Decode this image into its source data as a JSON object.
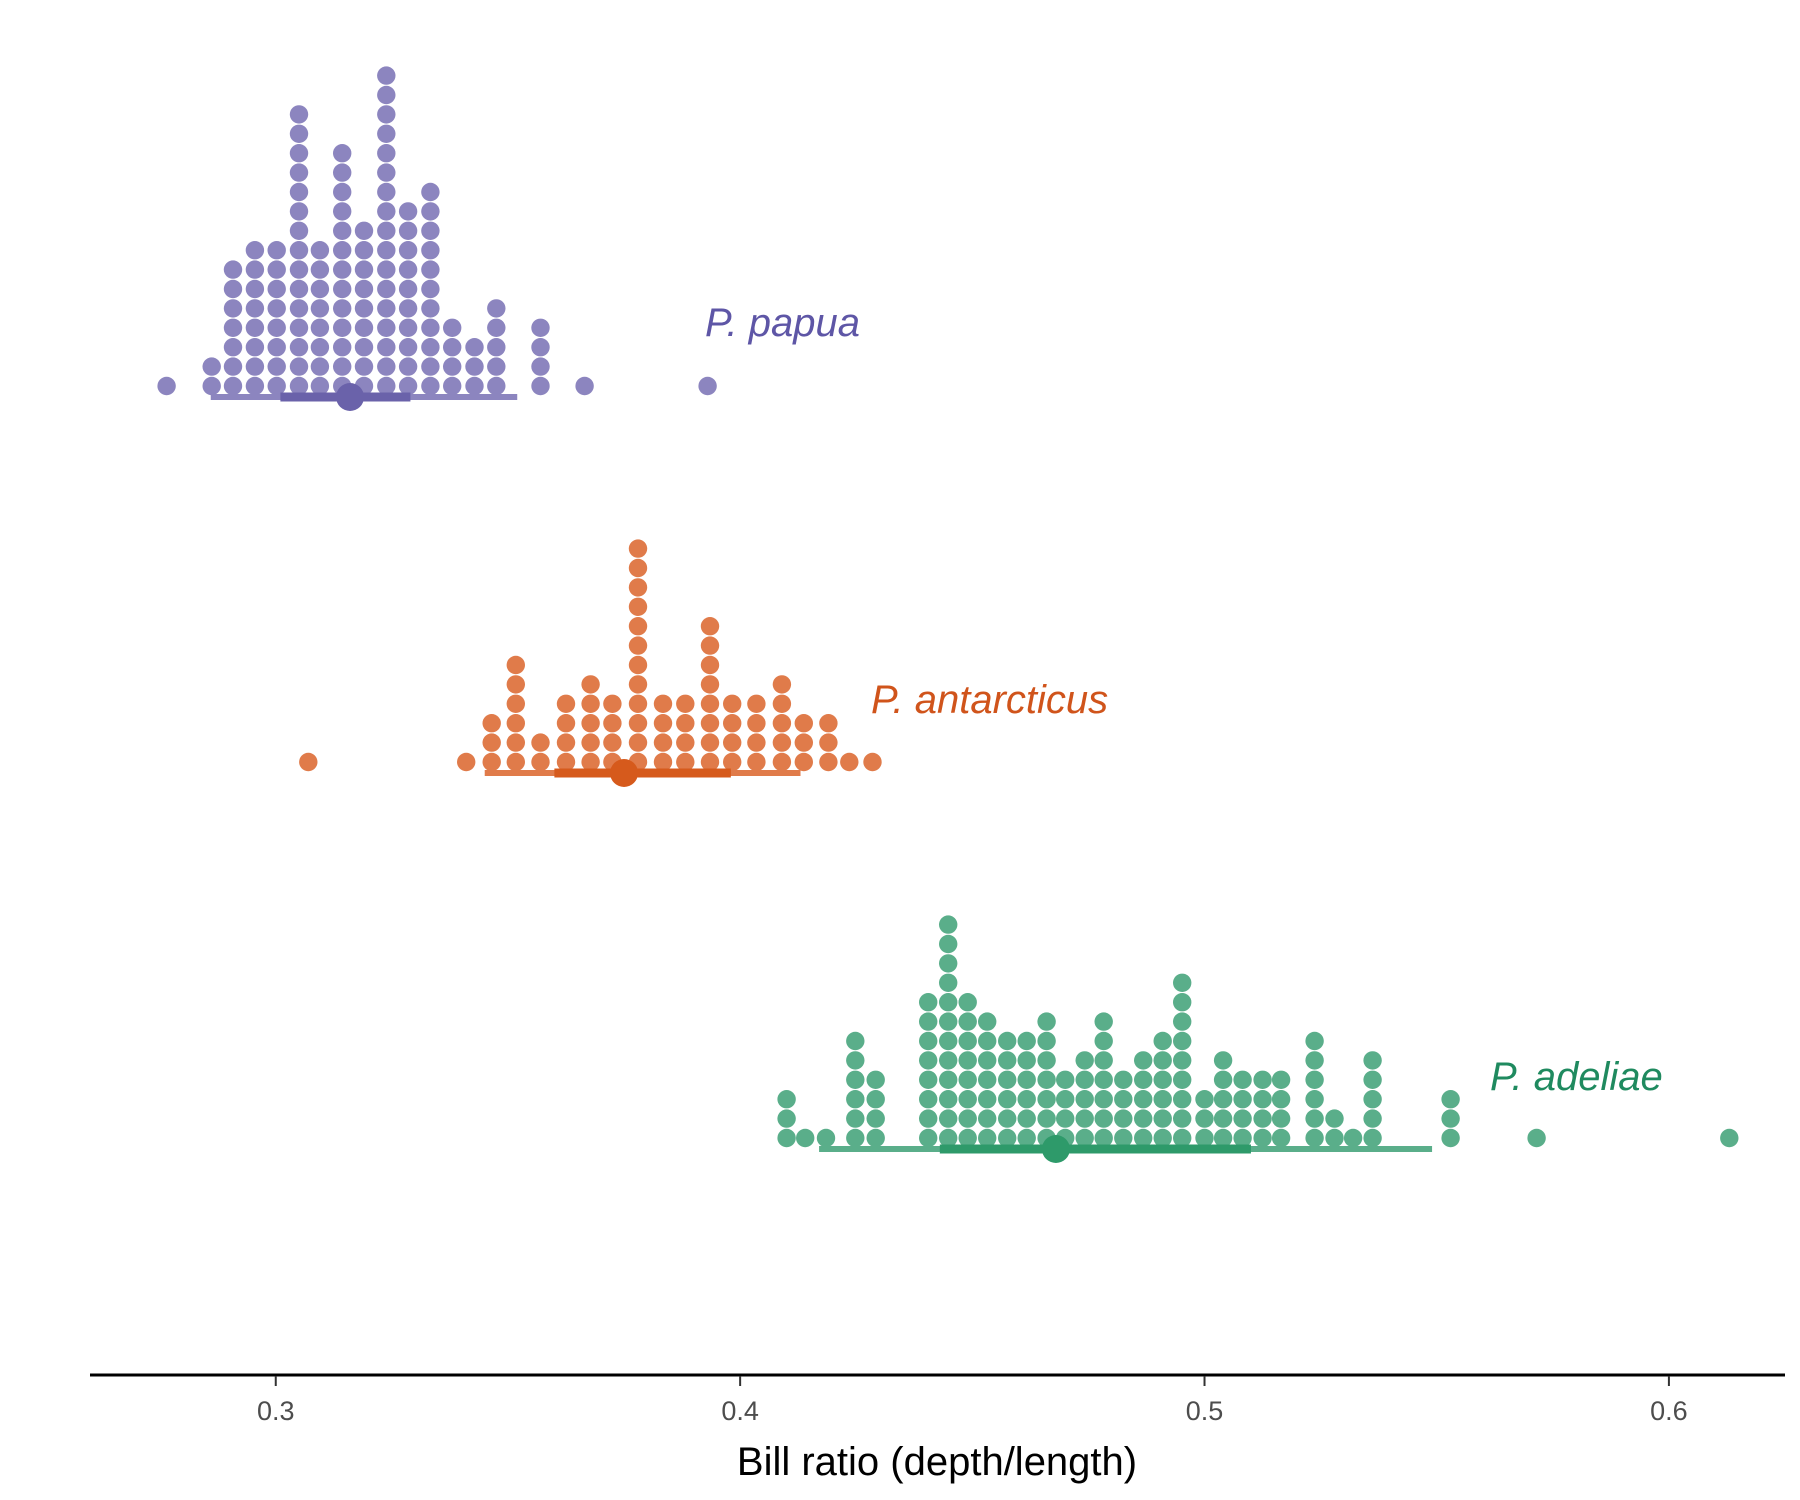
{
  "chart_data": {
    "type": "dotplot",
    "title": "",
    "xlabel": "Bill ratio (depth/length)",
    "ylabel": "",
    "xlim": [
      0.26,
      0.625
    ],
    "x_ticks": [
      {
        "value": 0.3,
        "label": "0.3"
      },
      {
        "value": 0.4,
        "label": "0.4"
      },
      {
        "value": 0.5,
        "label": "0.5"
      },
      {
        "value": 0.6,
        "label": "0.6"
      }
    ],
    "grid": false,
    "legend": "none",
    "bin_width": 0.00475,
    "series": [
      {
        "name": "P. papua",
        "color": "#8c85bf",
        "dark_color": "#6a62aa",
        "label_color": "#5e56a6",
        "median": 0.316,
        "interval_66": [
          0.301,
          0.329
        ],
        "interval_95": [
          0.286,
          0.352
        ],
        "bins": [
          {
            "x": 0.2765,
            "n": 1
          },
          {
            "x": 0.2862,
            "n": 2
          },
          {
            "x": 0.2908,
            "n": 7
          },
          {
            "x": 0.2955,
            "n": 8
          },
          {
            "x": 0.3002,
            "n": 8
          },
          {
            "x": 0.305,
            "n": 15
          },
          {
            "x": 0.3095,
            "n": 8
          },
          {
            "x": 0.3143,
            "n": 13
          },
          {
            "x": 0.319,
            "n": 9
          },
          {
            "x": 0.3238,
            "n": 17
          },
          {
            "x": 0.3285,
            "n": 10
          },
          {
            "x": 0.3333,
            "n": 11
          },
          {
            "x": 0.338,
            "n": 4
          },
          {
            "x": 0.3428,
            "n": 3
          },
          {
            "x": 0.3475,
            "n": 5
          },
          {
            "x": 0.357,
            "n": 4
          },
          {
            "x": 0.3665,
            "n": 1
          },
          {
            "x": 0.393,
            "n": 1
          }
        ]
      },
      {
        "name": "P. antarcticus",
        "color": "#e07b4a",
        "dark_color": "#d65a1c",
        "label_color": "#d0541b",
        "median": 0.375,
        "interval_66": [
          0.36,
          0.398
        ],
        "interval_95": [
          0.345,
          0.413
        ],
        "bins": [
          {
            "x": 0.307,
            "n": 1
          },
          {
            "x": 0.341,
            "n": 1
          },
          {
            "x": 0.3465,
            "n": 3
          },
          {
            "x": 0.3517,
            "n": 6
          },
          {
            "x": 0.357,
            "n": 2
          },
          {
            "x": 0.3625,
            "n": 4
          },
          {
            "x": 0.3678,
            "n": 5
          },
          {
            "x": 0.3725,
            "n": 4
          },
          {
            "x": 0.378,
            "n": 12
          },
          {
            "x": 0.3834,
            "n": 4
          },
          {
            "x": 0.3882,
            "n": 4
          },
          {
            "x": 0.3935,
            "n": 8
          },
          {
            "x": 0.3983,
            "n": 4
          },
          {
            "x": 0.4035,
            "n": 4
          },
          {
            "x": 0.409,
            "n": 5
          },
          {
            "x": 0.4137,
            "n": 3
          },
          {
            "x": 0.419,
            "n": 3
          },
          {
            "x": 0.4235,
            "n": 1
          },
          {
            "x": 0.4285,
            "n": 1
          }
        ]
      },
      {
        "name": "P. adeliae",
        "color": "#5aae8a",
        "dark_color": "#2e9a6a",
        "label_color": "#1f8a5f",
        "median": 0.468,
        "interval_66": [
          0.443,
          0.51
        ],
        "interval_95": [
          0.417,
          0.549
        ],
        "bins": [
          {
            "x": 0.41,
            "n": 3
          },
          {
            "x": 0.414,
            "n": 1
          },
          {
            "x": 0.4185,
            "n": 1
          },
          {
            "x": 0.4248,
            "n": 6
          },
          {
            "x": 0.4292,
            "n": 4
          },
          {
            "x": 0.4405,
            "n": 8
          },
          {
            "x": 0.4448,
            "n": 12
          },
          {
            "x": 0.449,
            "n": 8
          },
          {
            "x": 0.4532,
            "n": 7
          },
          {
            "x": 0.4575,
            "n": 6
          },
          {
            "x": 0.4617,
            "n": 6
          },
          {
            "x": 0.466,
            "n": 7
          },
          {
            "x": 0.47,
            "n": 4
          },
          {
            "x": 0.4742,
            "n": 5
          },
          {
            "x": 0.4783,
            "n": 7
          },
          {
            "x": 0.4825,
            "n": 4
          },
          {
            "x": 0.4868,
            "n": 5
          },
          {
            "x": 0.491,
            "n": 6
          },
          {
            "x": 0.4952,
            "n": 9
          },
          {
            "x": 0.5,
            "n": 3
          },
          {
            "x": 0.504,
            "n": 5
          },
          {
            "x": 0.5082,
            "n": 4
          },
          {
            "x": 0.5125,
            "n": 4
          },
          {
            "x": 0.5165,
            "n": 4
          },
          {
            "x": 0.5237,
            "n": 6
          },
          {
            "x": 0.528,
            "n": 2
          },
          {
            "x": 0.532,
            "n": 1
          },
          {
            "x": 0.5362,
            "n": 5
          },
          {
            "x": 0.553,
            "n": 3
          },
          {
            "x": 0.5715,
            "n": 1
          },
          {
            "x": 0.613,
            "n": 1
          }
        ]
      }
    ]
  }
}
